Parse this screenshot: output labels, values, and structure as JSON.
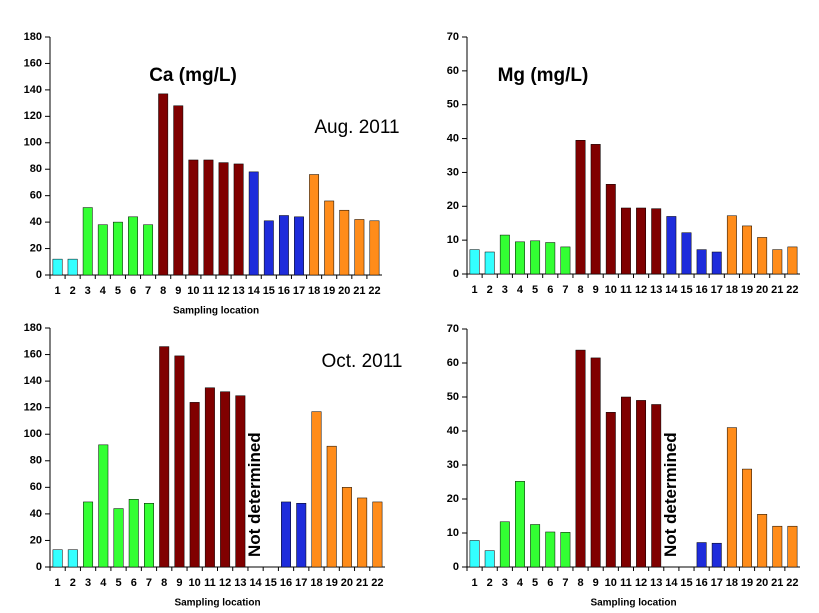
{
  "chart_data": [
    {
      "type": "bar",
      "title": "Ca (mg/L)",
      "annotation": "Aug. 2011",
      "x_label": "Sampling location",
      "categories": [
        "1",
        "2",
        "3",
        "4",
        "5",
        "6",
        "7",
        "8",
        "9",
        "10",
        "11",
        "12",
        "13",
        "14",
        "15",
        "16",
        "17",
        "18",
        "19",
        "20",
        "21",
        "22"
      ],
      "values": [
        12,
        12,
        51,
        38,
        40,
        44,
        38,
        137,
        128,
        87,
        87,
        85,
        84,
        78,
        41,
        45,
        44,
        76,
        56,
        49,
        42,
        41
      ],
      "colors": [
        "#33ffff",
        "#33ffff",
        "#33ff33",
        "#33ff33",
        "#33ff33",
        "#33ff33",
        "#33ff33",
        "#800000",
        "#800000",
        "#800000",
        "#800000",
        "#800000",
        "#800000",
        "#1e2cdb",
        "#1e2cdb",
        "#1e2cdb",
        "#1e2cdb",
        "#ff8c1a",
        "#ff8c1a",
        "#ff8c1a",
        "#ff8c1a",
        "#ff8c1a"
      ],
      "ylim": [
        0,
        180
      ],
      "yticks": [
        0,
        20,
        40,
        60,
        80,
        100,
        120,
        140,
        160,
        180
      ]
    },
    {
      "type": "bar",
      "title": "Mg (mg/L)",
      "categories": [
        "1",
        "2",
        "3",
        "4",
        "5",
        "6",
        "7",
        "8",
        "9",
        "10",
        "11",
        "12",
        "13",
        "14",
        "15",
        "16",
        "17",
        "18",
        "19",
        "20",
        "21",
        "22"
      ],
      "values": [
        7.2,
        6.5,
        11.5,
        9.5,
        9.8,
        9.3,
        8,
        39.5,
        38.3,
        26.5,
        19.5,
        19.5,
        19.3,
        17,
        12.2,
        7.2,
        6.5,
        17.2,
        14.2,
        10.8,
        7.2,
        8
      ],
      "colors": [
        "#33ffff",
        "#33ffff",
        "#33ff33",
        "#33ff33",
        "#33ff33",
        "#33ff33",
        "#33ff33",
        "#800000",
        "#800000",
        "#800000",
        "#800000",
        "#800000",
        "#800000",
        "#1e2cdb",
        "#1e2cdb",
        "#1e2cdb",
        "#1e2cdb",
        "#ff8c1a",
        "#ff8c1a",
        "#ff8c1a",
        "#ff8c1a",
        "#ff8c1a"
      ],
      "ylim": [
        0,
        70
      ],
      "yticks": [
        0,
        10,
        20,
        30,
        40,
        50,
        60,
        70
      ]
    },
    {
      "type": "bar",
      "annotation": "Oct. 2011",
      "x_label": "Sampling location",
      "note": "Not determined",
      "categories": [
        "1",
        "2",
        "3",
        "4",
        "5",
        "6",
        "7",
        "8",
        "9",
        "10",
        "11",
        "12",
        "13",
        "14",
        "15",
        "16",
        "17",
        "18",
        "19",
        "20",
        "21",
        "22"
      ],
      "values": [
        13,
        13,
        49,
        92,
        44,
        51,
        48,
        166,
        159,
        124,
        135,
        132,
        129,
        null,
        null,
        49,
        48,
        117,
        91,
        60,
        52,
        49
      ],
      "colors": [
        "#33ffff",
        "#33ffff",
        "#33ff33",
        "#33ff33",
        "#33ff33",
        "#33ff33",
        "#33ff33",
        "#800000",
        "#800000",
        "#800000",
        "#800000",
        "#800000",
        "#800000",
        "#1e2cdb",
        "#1e2cdb",
        "#1e2cdb",
        "#1e2cdb",
        "#ff8c1a",
        "#ff8c1a",
        "#ff8c1a",
        "#ff8c1a",
        "#ff8c1a"
      ],
      "ylim": [
        0,
        180
      ],
      "yticks": [
        0,
        20,
        40,
        60,
        80,
        100,
        120,
        140,
        160,
        180
      ]
    },
    {
      "type": "bar",
      "x_label": "Sampling location",
      "note": "Not determined",
      "categories": [
        "1",
        "2",
        "3",
        "4",
        "5",
        "6",
        "7",
        "8",
        "9",
        "10",
        "11",
        "12",
        "13",
        "14",
        "15",
        "16",
        "17",
        "18",
        "19",
        "20",
        "21",
        "22"
      ],
      "values": [
        7.8,
        4.8,
        13.3,
        25.2,
        12.5,
        10.3,
        10.2,
        63.8,
        61.5,
        45.5,
        50,
        49,
        47.8,
        null,
        null,
        7.2,
        7,
        41,
        28.8,
        15.5,
        12,
        12
      ],
      "colors": [
        "#33ffff",
        "#33ffff",
        "#33ff33",
        "#33ff33",
        "#33ff33",
        "#33ff33",
        "#33ff33",
        "#800000",
        "#800000",
        "#800000",
        "#800000",
        "#800000",
        "#800000",
        "#1e2cdb",
        "#1e2cdb",
        "#1e2cdb",
        "#1e2cdb",
        "#ff8c1a",
        "#ff8c1a",
        "#ff8c1a",
        "#ff8c1a",
        "#ff8c1a"
      ],
      "ylim": [
        0,
        70
      ],
      "yticks": [
        0,
        10,
        20,
        30,
        40,
        50,
        60,
        70
      ]
    }
  ]
}
